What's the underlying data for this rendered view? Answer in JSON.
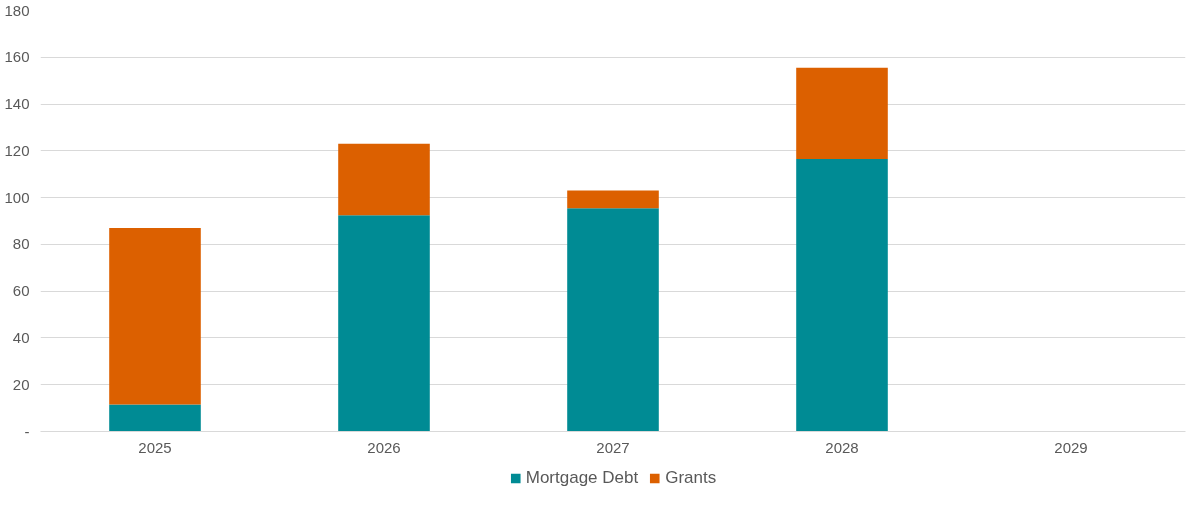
{
  "chart_data": {
    "type": "bar",
    "stacked": true,
    "categories": [
      "2025",
      "2026",
      "2027",
      "2028",
      "2029"
    ],
    "series": [
      {
        "name": "Mortgage Debt",
        "color": "#008b94",
        "values": [
          11.5,
          92.5,
          95.5,
          116.5,
          null
        ]
      },
      {
        "name": "Grants",
        "color": "#dc6000",
        "values": [
          75.5,
          30.5,
          7.5,
          39,
          null
        ]
      }
    ],
    "ylim": [
      0,
      180
    ],
    "yticks": [
      {
        "value": 0,
        "label": "-"
      },
      20,
      40,
      60,
      80,
      100,
      120,
      140,
      160,
      180
    ],
    "grid": "y",
    "legend": "bottom"
  }
}
